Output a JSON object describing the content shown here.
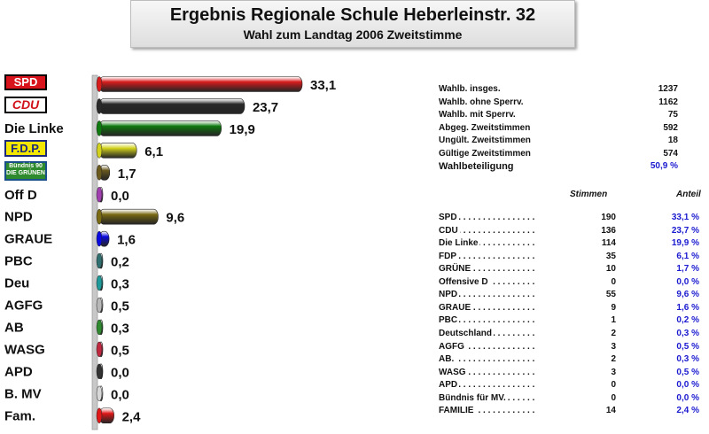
{
  "header": {
    "title": "Ergebnis Regionale Schule Heberleinstr. 32",
    "subtitle": "Wahl zum Landtag 2006 Zweitstimme"
  },
  "logos": {
    "spd": "SPD",
    "cdu": "CDU",
    "fdp": "F.D.P.",
    "gruene": "Bündnis 90 DIE GRÜNEN"
  },
  "chart_data": {
    "type": "bar",
    "orientation": "horizontal",
    "title": "Ergebnis Regionale Schule Heberleinstr. 32",
    "subtitle": "Wahl zum Landtag 2006 Zweitstimme",
    "categories": [
      "SPD",
      "CDU",
      "Die Linke",
      "F.D.P.",
      "Bündnis 90 Die Grünen",
      "Off D",
      "NPD",
      "GRAUE",
      "PBC",
      "Deu",
      "AGFG",
      "AB",
      "WASG",
      "APD",
      "B. MV",
      "Fam."
    ],
    "labels_text": [
      "",
      "",
      "Die Linke",
      "",
      "",
      "Off D",
      "NPD",
      "GRAUE",
      "PBC",
      "Deu",
      "AGFG",
      "AB",
      "WASG",
      "APD",
      "B. MV",
      "Fam."
    ],
    "values": [
      33.1,
      23.7,
      19.9,
      6.1,
      1.7,
      0.0,
      9.6,
      1.6,
      0.2,
      0.3,
      0.5,
      0.3,
      0.5,
      0.0,
      0.0,
      2.4
    ],
    "value_labels": [
      "33,1",
      "23,7",
      "19,9",
      "6,1",
      "1,7",
      "0,0",
      "9,6",
      "1,6",
      "0,2",
      "0,3",
      "0,5",
      "0,3",
      "0,5",
      "0,0",
      "0,0",
      "2,4"
    ],
    "colors": [
      "#d81c1c",
      "#2a2a2a",
      "#0f7a0f",
      "#d2d21e",
      "#6a5a1e",
      "#a23fb0",
      "#7a6a14",
      "#0a0ae0",
      "#2f6f70",
      "#1e9a9a",
      "#b8b8b8",
      "#2f8a2f",
      "#c02840",
      "#333333",
      "#d8d8d8",
      "#e01818"
    ],
    "xlim": [
      0,
      33.1
    ],
    "grid": false,
    "legend": "none"
  },
  "stats": [
    {
      "label": "Wahlb. insges.",
      "value": "1237"
    },
    {
      "label": "Wahlb. ohne Sperrv.",
      "value": "1162"
    },
    {
      "label": "Wahlb. mit Sperrv.",
      "value": "75"
    },
    {
      "label": "Abgeg. Zweitstimmen",
      "value": "592"
    },
    {
      "label": "Ungült. Zweitstimmen",
      "value": "18"
    },
    {
      "label": "Gültige Zweitstimmen",
      "value": "574"
    },
    {
      "label": "Wahlbeteiligung",
      "value": "50,9 %"
    }
  ],
  "results": {
    "header_votes": "Stimmen",
    "header_share": "Anteil",
    "rows": [
      {
        "name": "SPD",
        "votes": "190",
        "share": "33,1 %"
      },
      {
        "name": "CDU",
        "votes": "136",
        "share": "23,7 %"
      },
      {
        "name": "Die Linke",
        "votes": "114",
        "share": "19,9 %"
      },
      {
        "name": "FDP",
        "votes": "35",
        "share": "6,1 %"
      },
      {
        "name": "GRÜNE",
        "votes": "10",
        "share": "1,7 %"
      },
      {
        "name": "Offensive D",
        "votes": "0",
        "share": "0,0 %"
      },
      {
        "name": "NPD",
        "votes": "55",
        "share": "9,6 %"
      },
      {
        "name": "GRAUE",
        "votes": "9",
        "share": "1,6 %"
      },
      {
        "name": "PBC",
        "votes": "1",
        "share": "0,2 %"
      },
      {
        "name": "Deutschland",
        "votes": "2",
        "share": "0,3 %"
      },
      {
        "name": "AGFG",
        "votes": "3",
        "share": "0,5 %"
      },
      {
        "name": "AB.",
        "votes": "2",
        "share": "0,3 %"
      },
      {
        "name": "WASG",
        "votes": "3",
        "share": "0,5 %"
      },
      {
        "name": "APD",
        "votes": "0",
        "share": "0,0 %"
      },
      {
        "name": "Bündnis für MV.",
        "votes": "0",
        "share": "0,0 %"
      },
      {
        "name": "FAMILIE",
        "votes": "14",
        "share": "2,4 %"
      }
    ]
  }
}
